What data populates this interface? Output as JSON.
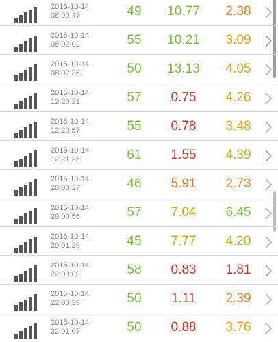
{
  "colors": {
    "green": "#7ac142",
    "red": "#d23a2b",
    "orange": "#ef7d1f",
    "amber": "#e8a20c",
    "gold": "#c8ab1e",
    "timestamp": "#8a8a8a",
    "divider": "#d9d9d9"
  },
  "rows": [
    {
      "date": "2015-10-14",
      "time": "08:00:47",
      "ping": "49",
      "ping_color": "green",
      "download": "10.77",
      "download_color": "green",
      "upload": "2.38",
      "upload_color": "orange"
    },
    {
      "date": "2015-10-14",
      "time": "08:02:02",
      "ping": "55",
      "ping_color": "green",
      "download": "10.21",
      "download_color": "green",
      "upload": "3.09",
      "upload_color": "amber"
    },
    {
      "date": "2015-10-14",
      "time": "08:02:36",
      "ping": "50",
      "ping_color": "green",
      "download": "13.13",
      "download_color": "green",
      "upload": "4.05",
      "upload_color": "gold"
    },
    {
      "date": "2015-10-14",
      "time": "12:20:21",
      "ping": "57",
      "ping_color": "green",
      "download": "0.75",
      "download_color": "red",
      "upload": "4.26",
      "upload_color": "gold"
    },
    {
      "date": "2015-10-14",
      "time": "12:20:57",
      "ping": "55",
      "ping_color": "green",
      "download": "0.78",
      "download_color": "red",
      "upload": "3.48",
      "upload_color": "amber"
    },
    {
      "date": "2015-10-14",
      "time": "12:21:28",
      "ping": "61",
      "ping_color": "green",
      "download": "1.55",
      "download_color": "red",
      "upload": "4.39",
      "upload_color": "gold"
    },
    {
      "date": "2015-10-14",
      "time": "20:00:27",
      "ping": "46",
      "ping_color": "green",
      "download": "5.91",
      "download_color": "orange",
      "upload": "2.73",
      "upload_color": "orange"
    },
    {
      "date": "2015-10-14",
      "time": "20:00:56",
      "ping": "57",
      "ping_color": "green",
      "download": "7.04",
      "download_color": "amber",
      "upload": "6.45",
      "upload_color": "green"
    },
    {
      "date": "2015-10-14",
      "time": "20:01:29",
      "ping": "45",
      "ping_color": "green",
      "download": "7.77",
      "download_color": "amber",
      "upload": "4.20",
      "upload_color": "gold"
    },
    {
      "date": "2015-10-14",
      "time": "22:00:09",
      "ping": "58",
      "ping_color": "green",
      "download": "0.83",
      "download_color": "red",
      "upload": "1.81",
      "upload_color": "red"
    },
    {
      "date": "2015-10-14",
      "time": "22:00:39",
      "ping": "50",
      "ping_color": "green",
      "download": "1.11",
      "download_color": "red",
      "upload": "2.39",
      "upload_color": "orange"
    },
    {
      "date": "2015-10-14",
      "time": "22:01:07",
      "ping": "50",
      "ping_color": "green",
      "download": "0.88",
      "download_color": "red",
      "upload": "3.76",
      "upload_color": "amber"
    }
  ]
}
